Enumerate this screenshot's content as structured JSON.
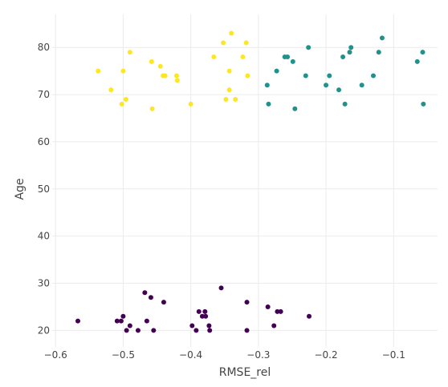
{
  "chart_data": {
    "type": "scatter",
    "xlabel": "RMSE_rel",
    "ylabel": "Age",
    "xlim": [
      -0.605,
      -0.035
    ],
    "ylim": [
      16.5,
      87
    ],
    "x_ticks": [
      -0.6,
      -0.5,
      -0.4,
      -0.3,
      -0.2,
      -0.1
    ],
    "x_tick_labels": [
      "−0.6",
      "−0.5",
      "−0.4",
      "−0.3",
      "−0.2",
      "−0.1"
    ],
    "y_ticks": [
      20,
      30,
      40,
      50,
      60,
      70,
      80
    ],
    "y_tick_labels": [
      "20",
      "30",
      "40",
      "50",
      "60",
      "70",
      "80"
    ],
    "grid": true,
    "legend": false,
    "series": [
      {
        "color": "#fde725",
        "points": [
          {
            "x": -0.537,
            "y": 75
          },
          {
            "x": -0.518,
            "y": 71
          },
          {
            "x": -0.5,
            "y": 75
          },
          {
            "x": -0.502,
            "y": 68
          },
          {
            "x": -0.496,
            "y": 69
          },
          {
            "x": -0.49,
            "y": 79
          },
          {
            "x": -0.458,
            "y": 77
          },
          {
            "x": -0.457,
            "y": 67
          },
          {
            "x": -0.445,
            "y": 76
          },
          {
            "x": -0.441,
            "y": 74
          },
          {
            "x": -0.438,
            "y": 74
          },
          {
            "x": -0.421,
            "y": 74
          },
          {
            "x": -0.42,
            "y": 73
          },
          {
            "x": -0.4,
            "y": 68
          },
          {
            "x": -0.366,
            "y": 78
          },
          {
            "x": -0.352,
            "y": 81
          },
          {
            "x": -0.348,
            "y": 69
          },
          {
            "x": -0.343,
            "y": 71
          },
          {
            "x": -0.343,
            "y": 75
          },
          {
            "x": -0.34,
            "y": 83
          },
          {
            "x": -0.334,
            "y": 69
          },
          {
            "x": -0.323,
            "y": 78
          },
          {
            "x": -0.318,
            "y": 81
          },
          {
            "x": -0.316,
            "y": 74
          }
        ]
      },
      {
        "color": "#21918c",
        "points": [
          {
            "x": -0.287,
            "y": 72
          },
          {
            "x": -0.285,
            "y": 68
          },
          {
            "x": -0.273,
            "y": 75
          },
          {
            "x": -0.261,
            "y": 78
          },
          {
            "x": -0.257,
            "y": 78
          },
          {
            "x": -0.249,
            "y": 77
          },
          {
            "x": -0.246,
            "y": 67
          },
          {
            "x": -0.23,
            "y": 74
          },
          {
            "x": -0.226,
            "y": 80
          },
          {
            "x": -0.2,
            "y": 72
          },
          {
            "x": -0.195,
            "y": 74
          },
          {
            "x": -0.181,
            "y": 71
          },
          {
            "x": -0.175,
            "y": 78
          },
          {
            "x": -0.172,
            "y": 68
          },
          {
            "x": -0.165,
            "y": 79
          },
          {
            "x": -0.163,
            "y": 80
          },
          {
            "x": -0.147,
            "y": 72
          },
          {
            "x": -0.13,
            "y": 74
          },
          {
            "x": -0.122,
            "y": 79
          },
          {
            "x": -0.117,
            "y": 82
          },
          {
            "x": -0.065,
            "y": 77
          },
          {
            "x": -0.057,
            "y": 79
          },
          {
            "x": -0.056,
            "y": 68
          }
        ]
      },
      {
        "color": "#440154",
        "points": [
          {
            "x": -0.567,
            "y": 22
          },
          {
            "x": -0.509,
            "y": 22
          },
          {
            "x": -0.503,
            "y": 22
          },
          {
            "x": -0.5,
            "y": 23
          },
          {
            "x": -0.495,
            "y": 20
          },
          {
            "x": -0.49,
            "y": 21
          },
          {
            "x": -0.478,
            "y": 20
          },
          {
            "x": -0.468,
            "y": 28
          },
          {
            "x": -0.465,
            "y": 22
          },
          {
            "x": -0.459,
            "y": 27
          },
          {
            "x": -0.455,
            "y": 20
          },
          {
            "x": -0.44,
            "y": 26
          },
          {
            "x": -0.398,
            "y": 21
          },
          {
            "x": -0.392,
            "y": 20
          },
          {
            "x": -0.388,
            "y": 24
          },
          {
            "x": -0.383,
            "y": 23
          },
          {
            "x": -0.379,
            "y": 24
          },
          {
            "x": -0.378,
            "y": 23
          },
          {
            "x": -0.373,
            "y": 21
          },
          {
            "x": -0.372,
            "y": 20
          },
          {
            "x": -0.355,
            "y": 29
          },
          {
            "x": -0.317,
            "y": 26
          },
          {
            "x": -0.317,
            "y": 20
          },
          {
            "x": -0.286,
            "y": 25
          },
          {
            "x": -0.277,
            "y": 21
          },
          {
            "x": -0.272,
            "y": 24
          },
          {
            "x": -0.267,
            "y": 24
          },
          {
            "x": -0.225,
            "y": 23
          }
        ]
      }
    ]
  }
}
